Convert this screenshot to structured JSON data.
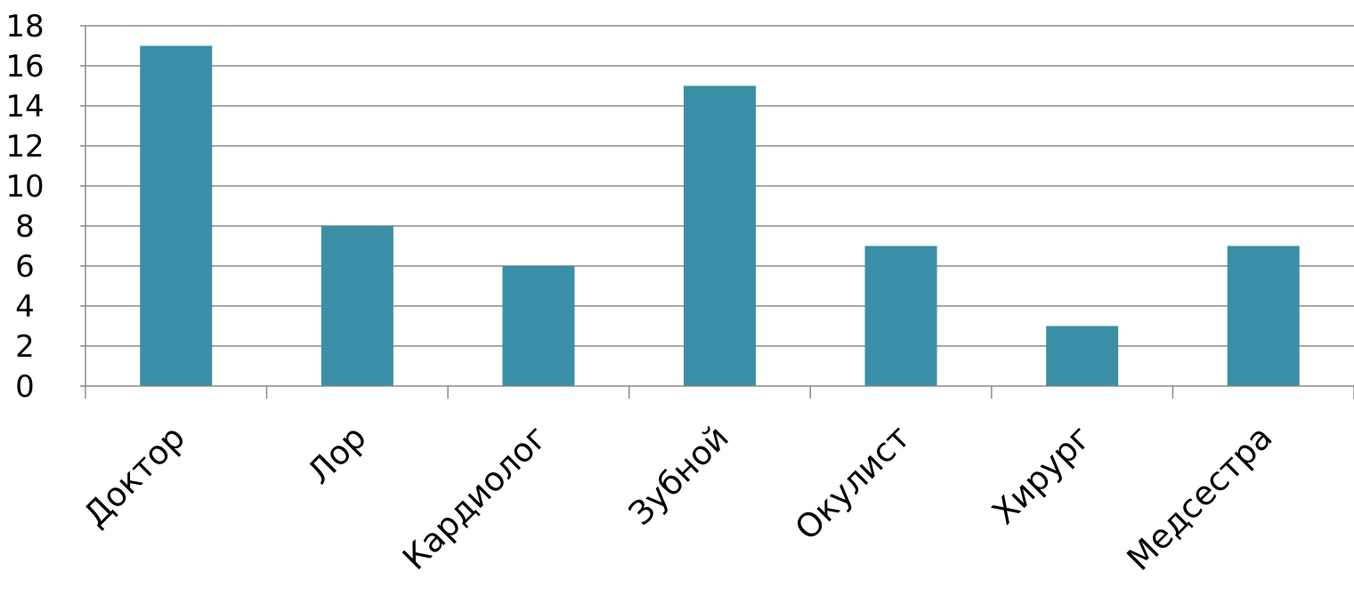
{
  "chart_data": {
    "type": "bar",
    "categories": [
      "Доктор",
      "Лор",
      "Кардиолог",
      "Зубной",
      "Окулист",
      "Хирург",
      "Медсестра"
    ],
    "values": [
      17,
      8,
      6,
      15,
      7,
      3,
      7
    ],
    "title": "",
    "xlabel": "",
    "ylabel": "",
    "ylim": [
      0,
      18
    ],
    "yticks": [
      0,
      2,
      4,
      6,
      8,
      10,
      12,
      14,
      16,
      18
    ],
    "grid": true,
    "legend": "none",
    "colors": {
      "bar": "#3a8fa6",
      "grid": "#8c8c8c"
    }
  }
}
